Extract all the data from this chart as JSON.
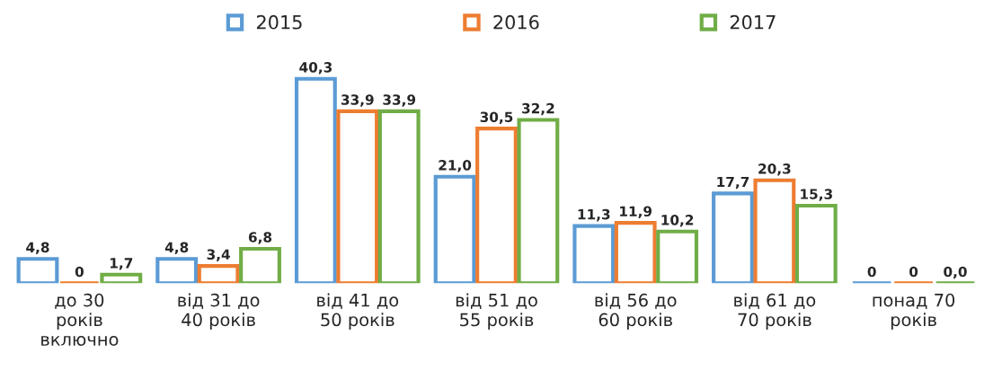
{
  "chart_data": {
    "type": "bar",
    "categories": [
      "до 30\nроків\nвключно",
      "від 31 до\n40 років",
      "від 41 до\n50 років",
      "від 51 до\n55 років",
      "від 56 до\n60 років",
      "від 61 до\n70 років",
      "понад 70\nроків"
    ],
    "series": [
      {
        "name": "2015",
        "color": "#5b9bd5",
        "values": [
          4.8,
          4.8,
          40.3,
          21.0,
          11.3,
          17.7,
          0
        ],
        "value_labels": [
          "4,8",
          "4,8",
          "40,3",
          "21,0",
          "11,3",
          "17,7",
          "0"
        ]
      },
      {
        "name": "2016",
        "color": "#ed7d31",
        "values": [
          0,
          3.4,
          33.9,
          30.5,
          11.9,
          20.3,
          0
        ],
        "value_labels": [
          "0",
          "3,4",
          "33,9",
          "30,5",
          "11,9",
          "20,3",
          "0"
        ]
      },
      {
        "name": "2017",
        "color": "#70ad47",
        "values": [
          1.7,
          6.8,
          33.9,
          32.2,
          10.2,
          15.3,
          0.0
        ],
        "value_labels": [
          "1,7",
          "6,8",
          "33,9",
          "32,2",
          "10,2",
          "15,3",
          "0,0"
        ]
      }
    ],
    "legend": "top",
    "grid": false
  }
}
